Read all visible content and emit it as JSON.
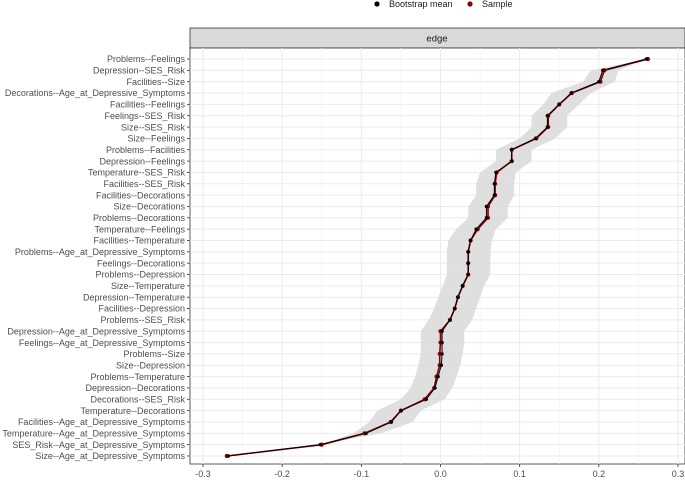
{
  "chart_data": {
    "type": "line",
    "facet_label": "edge",
    "legend": {
      "placement": "top",
      "entries": [
        {
          "name": "Bootstrap mean",
          "color": "#000000"
        },
        {
          "name": "Sample",
          "color": "#8b0000"
        }
      ]
    },
    "xlim": [
      -0.3,
      0.3
    ],
    "x_ticks": [
      -0.3,
      -0.2,
      -0.1,
      0.0,
      0.1,
      0.2,
      0.3
    ],
    "x_tick_labels": [
      "-0.3",
      "-0.2",
      "-0.1",
      "0.0",
      "0.1",
      "0.2",
      "0.3"
    ],
    "grid": true,
    "ci_color": "#d9d9d9",
    "categories": [
      "Problems--Feelings",
      "Depression--SES_Risk",
      "Facilities--Size",
      "Decorations--Age_at_Depressive_Symptoms",
      "Facilities--Feelings",
      "Feelings--SES_Risk",
      "Size--SES_Risk",
      "Size--Feelings",
      "Problems--Facilities",
      "Depression--Feelings",
      "Temperature--SES_Risk",
      "Facilities--SES_Risk",
      "Facilities--Decorations",
      "Size--Decorations",
      "Problems--Decorations",
      "Temperature--Feelings",
      "Facilities--Temperature",
      "Problems--Age_at_Depressive_Symptoms",
      "Feelings--Decorations",
      "Problems--Depression",
      "Size--Temperature",
      "Depression--Temperature",
      "Facilities--Depression",
      "Problems--SES_Risk",
      "Depression--Age_at_Depressive_Symptoms",
      "Feelings--Age_at_Depressive_Symptoms",
      "Problems--Size",
      "Size--Depression",
      "Problems--Temperature",
      "Depression--Decorations",
      "Decorations--SES_Risk",
      "Temperature--Decorations",
      "Facilities--Age_at_Depressive_Symptoms",
      "Temperature--Age_at_Depressive_Symptoms",
      "SES_Risk--Age_at_Depressive_Symptoms",
      "Size--Age_at_Depressive_Symptoms"
    ],
    "series": [
      {
        "name": "Bootstrap mean",
        "values": [
          0.26,
          0.205,
          0.2,
          0.165,
          0.15,
          0.135,
          0.135,
          0.12,
          0.09,
          0.09,
          0.07,
          0.068,
          0.068,
          0.058,
          0.058,
          0.045,
          0.038,
          0.035,
          0.035,
          0.035,
          0.028,
          0.022,
          0.018,
          0.012,
          0.002,
          0.002,
          0.002,
          0.001,
          -0.003,
          -0.007,
          -0.018,
          -0.05,
          -0.062,
          -0.094,
          -0.152,
          -0.268
        ]
      },
      {
        "name": "Sample",
        "values": [
          0.262,
          0.207,
          0.202,
          0.166,
          0.15,
          0.136,
          0.136,
          0.121,
          0.09,
          0.09,
          0.071,
          0.069,
          0.069,
          0.06,
          0.06,
          0.047,
          0.038,
          0.035,
          0.035,
          0.035,
          0.028,
          0.022,
          0.018,
          0.012,
          0.0,
          0.0,
          -0.001,
          -0.001,
          -0.005,
          -0.008,
          -0.02,
          -0.05,
          -0.063,
          -0.096,
          -0.15,
          -0.27
        ]
      }
    ],
    "ci_lower": [
      0.26,
      0.19,
      0.18,
      0.14,
      0.13,
      0.115,
      0.115,
      0.1,
      0.07,
      0.07,
      0.05,
      0.045,
      0.045,
      0.035,
      0.035,
      0.02,
      0.01,
      0.008,
      0.008,
      0.008,
      0.003,
      -0.003,
      -0.008,
      -0.015,
      -0.025,
      -0.025,
      -0.025,
      -0.028,
      -0.032,
      -0.038,
      -0.05,
      -0.08,
      -0.09,
      -0.11,
      -0.152,
      -0.268
    ],
    "ci_upper": [
      0.26,
      0.225,
      0.22,
      0.19,
      0.175,
      0.16,
      0.16,
      0.145,
      0.115,
      0.115,
      0.095,
      0.093,
      0.093,
      0.085,
      0.085,
      0.07,
      0.065,
      0.063,
      0.063,
      0.063,
      0.055,
      0.05,
      0.045,
      0.04,
      0.03,
      0.03,
      0.028,
      0.025,
      0.02,
      0.015,
      0.005,
      -0.025,
      -0.035,
      -0.075,
      -0.152,
      -0.268
    ]
  }
}
